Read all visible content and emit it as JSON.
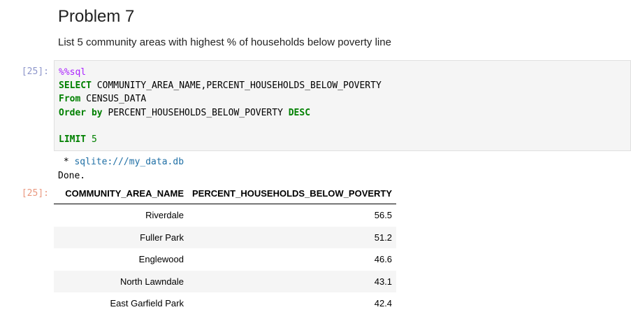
{
  "markdown": {
    "heading": "Problem 7",
    "description": "List 5 community areas with highest % of households below poverty line"
  },
  "input_cell": {
    "prompt": "[25]:",
    "code": {
      "magic": "%%sql",
      "line2_kw": "SELECT",
      "line2_rest": " COMMUNITY_AREA_NAME,PERCENT_HOUSEHOLDS_BELOW_POVERTY",
      "line3_kw": "From",
      "line3_rest": " CENSUS_DATA",
      "line4_kw1": "Order by",
      "line4_mid": " PERCENT_HOUSEHOLDS_BELOW_POVERTY ",
      "line4_kw2": "DESC",
      "line6_kw": "LIMIT",
      "line6_num": "5"
    }
  },
  "output_cell": {
    "prompt": "[25]:",
    "stdout": {
      "bullet": " * ",
      "connection": "sqlite:///my_data.db",
      "done": "Done."
    },
    "table": {
      "columns": [
        "COMMUNITY_AREA_NAME",
        "PERCENT_HOUSEHOLDS_BELOW_POVERTY"
      ],
      "rows": [
        [
          "Riverdale",
          "56.5"
        ],
        [
          "Fuller Park",
          "51.2"
        ],
        [
          "Englewood",
          "46.6"
        ],
        [
          "North Lawndale",
          "43.1"
        ],
        [
          "East Garfield Park",
          "42.4"
        ]
      ]
    }
  },
  "colors": {
    "keyword": "#008000",
    "magic": "#aa22ff",
    "link": "#1f6fa5",
    "input_prompt": "#303f9f",
    "output_prompt": "#d84315",
    "cell_background": "#f5f5f5"
  }
}
